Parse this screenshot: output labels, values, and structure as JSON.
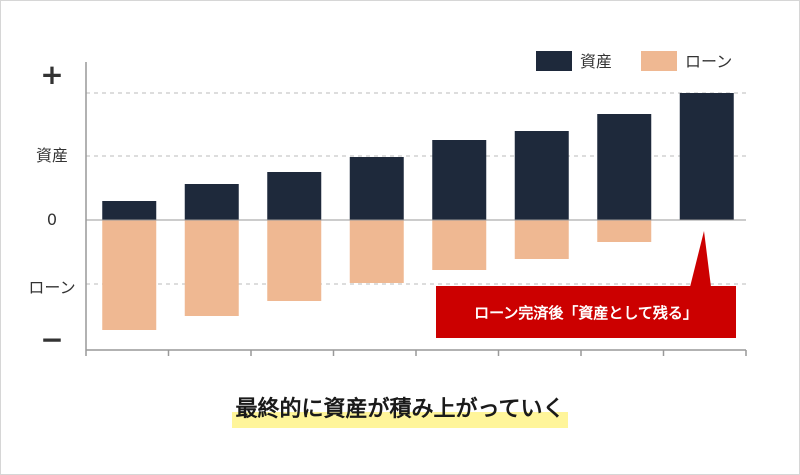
{
  "chart_data": {
    "type": "bar",
    "categories": [
      "",
      "",
      "",
      "",
      "",
      "",
      "",
      ""
    ],
    "series": [
      {
        "name": "資産",
        "values": [
          19,
          36,
          48,
          63,
          80,
          89,
          106,
          127
        ]
      },
      {
        "name": "ローン",
        "values": [
          -110,
          -96,
          -81,
          -63,
          -50,
          -39,
          -22,
          0
        ]
      }
    ],
    "y_tick_labels": {
      "top": "+",
      "asset": "資産",
      "zero": "0",
      "loan": "ローン",
      "bottom": "−"
    },
    "ylim": [
      -130,
      130
    ],
    "grid": true,
    "legend": "top-right",
    "annotation": "ローン完済後「資産として残る」",
    "colors": {
      "asset": "#1e293b",
      "loan": "#efb892",
      "annotation": "#cc0000",
      "grid": "#bbbbbb",
      "axis": "#999999"
    }
  },
  "caption": "最終的に資産が積み上がっていく"
}
